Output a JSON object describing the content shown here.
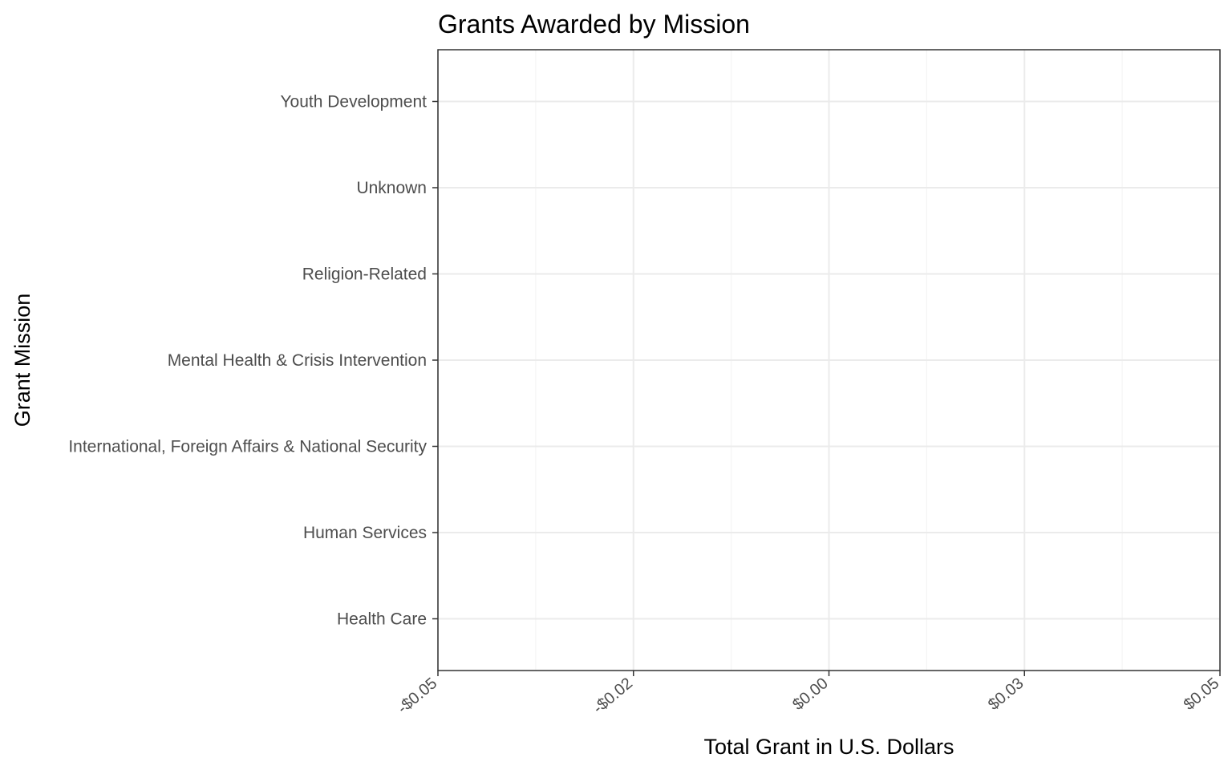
{
  "chart_data": {
    "type": "bar",
    "orientation": "horizontal",
    "title": "Grants Awarded by Mission",
    "xlabel": "Total Grant in U.S. Dollars",
    "ylabel": "Grant Mission",
    "categories": [
      "Health Care",
      "Human Services",
      "International, Foreign Affairs & National Security",
      "Mental Health & Crisis Intervention",
      "Religion-Related",
      "Unknown",
      "Youth Development"
    ],
    "values": [
      0,
      0,
      0,
      0,
      0,
      0,
      0
    ],
    "xlim": [
      -0.05,
      0.05
    ],
    "x_ticks": [
      -0.05,
      -0.025,
      0,
      0.025,
      0.05
    ],
    "x_tick_labels": [
      "-$0.05",
      "-$0.02",
      "$0.00",
      "$0.03",
      "$0.05"
    ],
    "grid": true,
    "legend": "none",
    "colors": {
      "background": "#ffffff",
      "panel_border": "#333333",
      "grid_major": "#ebebeb",
      "grid_minor": "#f4f4f4",
      "tick_text": "#4d4d4d",
      "title_text": "#000000"
    }
  }
}
